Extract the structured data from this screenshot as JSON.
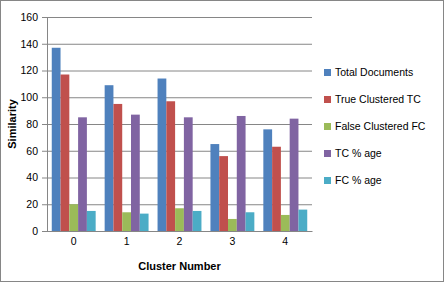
{
  "chart_data": {
    "type": "bar",
    "x_label": "Cluster Number",
    "y_label": "Similarity",
    "categories": [
      "0",
      "1",
      "2",
      "3",
      "4"
    ],
    "series": [
      {
        "name": "Total Documents",
        "color": "#4f81bd",
        "values": [
          137,
          109,
          114,
          65,
          76
        ]
      },
      {
        "name": "True Clustered TC",
        "color": "#c0504d",
        "values": [
          117,
          95,
          97,
          56,
          63
        ]
      },
      {
        "name": "False Clustered FC",
        "color": "#9bbb59",
        "values": [
          20,
          14,
          17,
          9,
          12
        ]
      },
      {
        "name": "TC % age",
        "color": "#8064a2",
        "values": [
          85,
          87,
          85,
          86,
          84
        ]
      },
      {
        "name": "FC % age",
        "color": "#4bacc6",
        "values": [
          15,
          13,
          15,
          14,
          16
        ]
      }
    ],
    "ylim": [
      0,
      160
    ],
    "yticks": [
      0,
      20,
      40,
      60,
      80,
      100,
      120,
      140,
      160
    ],
    "grid": true,
    "legend": "right"
  }
}
